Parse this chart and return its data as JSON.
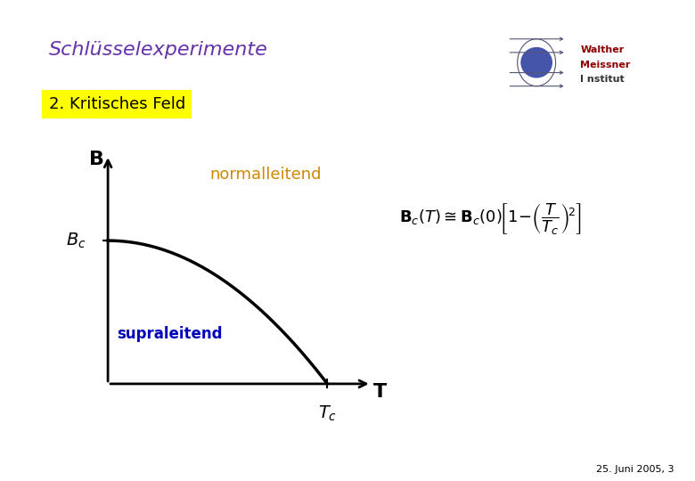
{
  "title": "Schlüsselexperimente",
  "subtitle": "2. Kritisches Feld",
  "background_color": "#ffffff",
  "title_color": "#6633aa",
  "subtitle_bg": "#ffff00",
  "subtitle_color": "#000000",
  "curve_color": "#000000",
  "normalleitend_text": "normalleitend",
  "normalleitend_color": "#cc8800",
  "supraleitend_text": "supraleitend",
  "supraleitend_color": "#0000bb",
  "B_label": "B",
  "Bc_label": "$B_c$",
  "Tc_label": "$T_c$",
  "T_label": "T",
  "footer": "25. Juni 2005, 3",
  "hline_color": "#6666aa",
  "vbar_color": "#334488"
}
